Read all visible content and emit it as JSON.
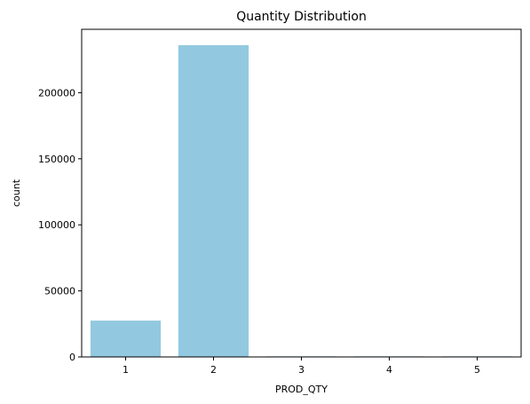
{
  "chart_data": {
    "type": "bar",
    "title": "Quantity Distribution",
    "xlabel": "PROD_QTY",
    "ylabel": "count",
    "categories": [
      "1",
      "2",
      "3",
      "4",
      "5"
    ],
    "values": [
      27500,
      236000,
      450,
      450,
      450
    ],
    "ylim": [
      0,
      248000
    ],
    "yticks": [
      0,
      50000,
      100000,
      150000,
      200000
    ],
    "ytick_labels": [
      "0",
      "50000",
      "100000",
      "150000",
      "200000"
    ],
    "bar_color": "#92c9e0",
    "grid": false,
    "legend": "none"
  }
}
